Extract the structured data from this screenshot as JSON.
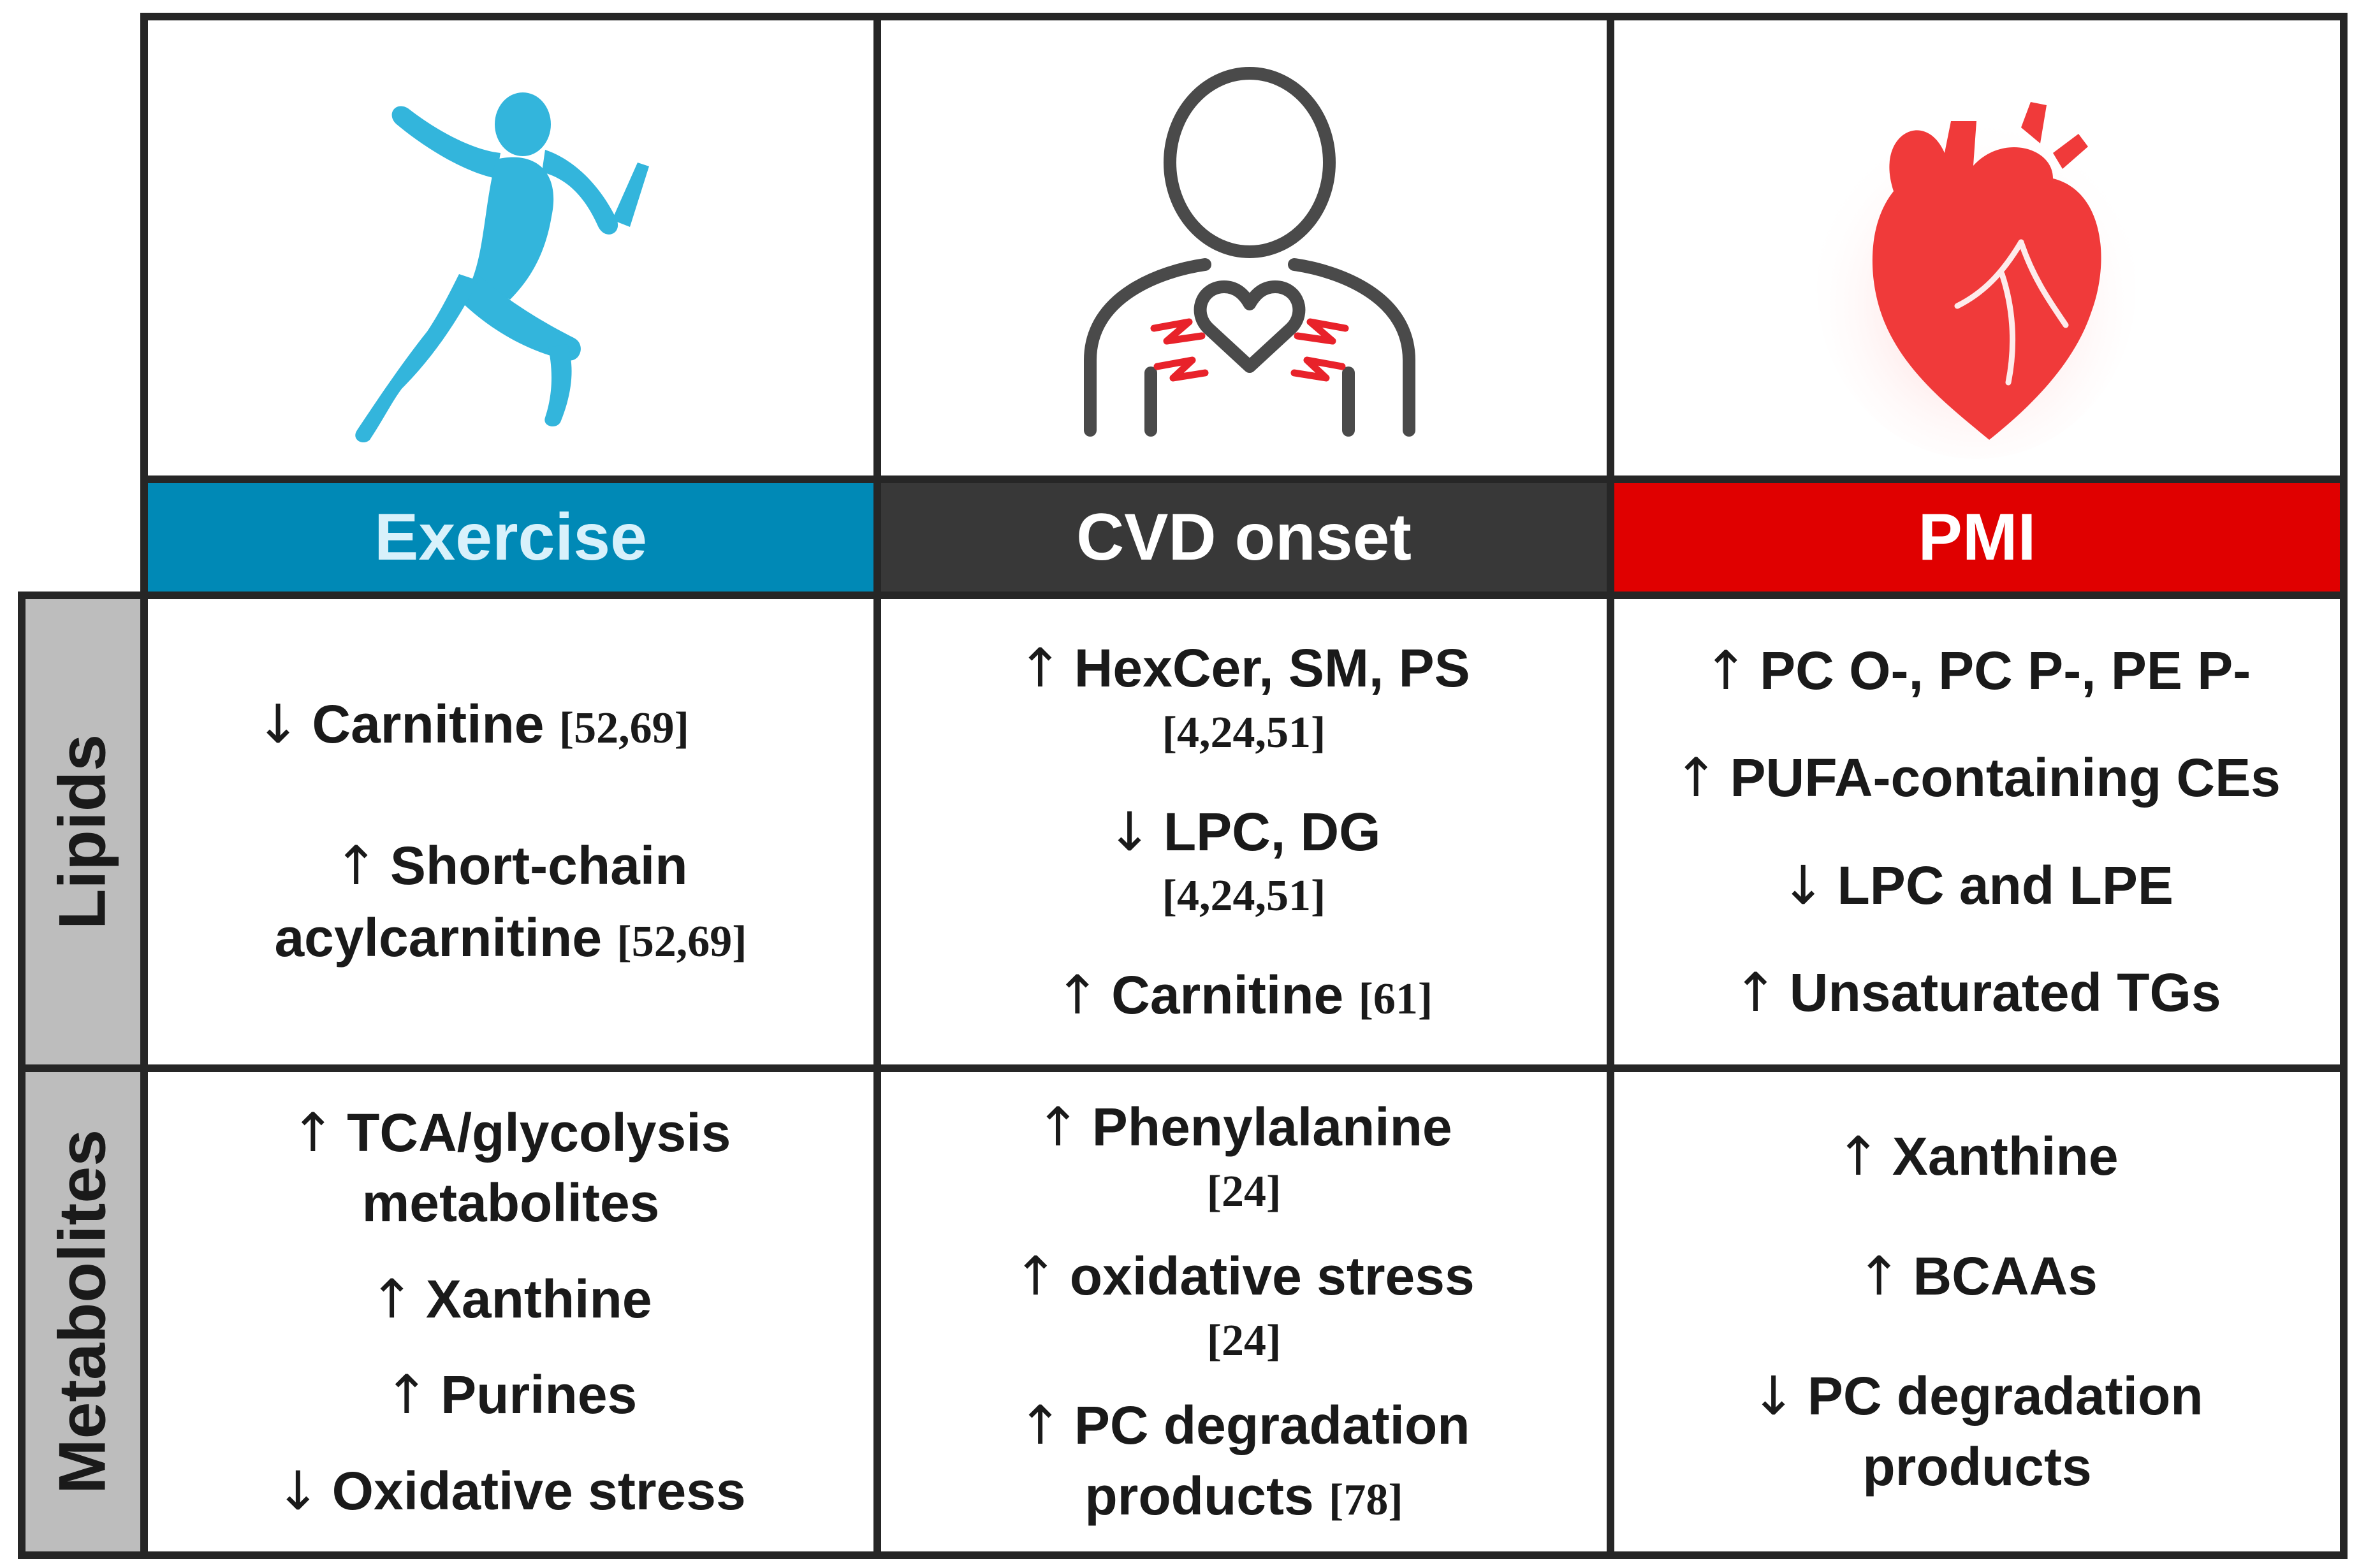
{
  "columns": [
    {
      "label": "Exercise",
      "color": "#0089B6",
      "icon": "runner-icon",
      "icon_color": "#33B5DC"
    },
    {
      "label": "CVD onset",
      "color": "#383838",
      "icon": "person-heart-icon",
      "icon_color": "#4a4a4a",
      "accent": "#E8222A"
    },
    {
      "label": "PMI",
      "color": "#E00000",
      "icon": "heart-icon",
      "icon_color": "#F03A3A"
    }
  ],
  "rows": [
    {
      "label": "Lipids"
    },
    {
      "label": "Metabolites"
    }
  ],
  "cells": {
    "lipids_exercise": [
      {
        "arrow": "↓",
        "text": "Carnitine",
        "ref": "[52,69]"
      },
      {
        "arrow": "↑",
        "text": "Short-chain",
        "text2": "acylcarnitine",
        "ref": "[52,69]"
      }
    ],
    "lipids_cvd": [
      {
        "arrow": "↑",
        "text": "HexCer, SM, PS",
        "ref": "[4,24,51]"
      },
      {
        "arrow": "↓",
        "text": "LPC, DG",
        "ref": "[4,24,51]"
      },
      {
        "arrow": "↑",
        "text": "Carnitine",
        "ref": "[61]"
      }
    ],
    "lipids_pmi": [
      {
        "arrow": "↑",
        "text": "PC O-, PC P-, PE P-"
      },
      {
        "arrow": "↑",
        "text": "PUFA-containing CEs"
      },
      {
        "arrow": "↓",
        "text": "LPC and LPE"
      },
      {
        "arrow": "↑",
        "text": "Unsaturated TGs"
      }
    ],
    "metab_exercise": [
      {
        "arrow": "↑",
        "text": "TCA/glycolysis",
        "text2": "metabolites"
      },
      {
        "arrow": "↑",
        "text": "Xanthine"
      },
      {
        "arrow": "↑",
        "text": "Purines"
      },
      {
        "arrow": "↓",
        "text": "Oxidative stress"
      }
    ],
    "metab_cvd": [
      {
        "arrow": "↑",
        "text": "Phenylalanine",
        "ref": "[24]"
      },
      {
        "arrow": "↑",
        "text": "oxidative stress",
        "ref": "[24]"
      },
      {
        "arrow": "↑",
        "text": "PC degradation",
        "text2": "products",
        "ref": "[78]"
      }
    ],
    "metab_pmi": [
      {
        "arrow": "↑",
        "text": "Xanthine"
      },
      {
        "arrow": "↑",
        "text": "BCAAs"
      },
      {
        "arrow": "↓",
        "text": "PC degradation",
        "text2": "products"
      }
    ]
  }
}
